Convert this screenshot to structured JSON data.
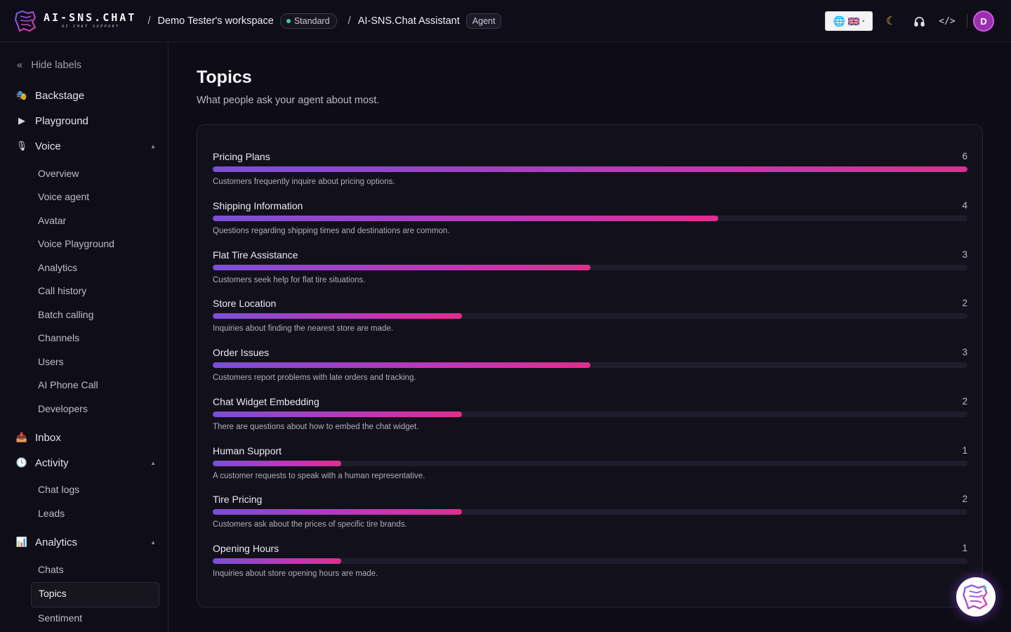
{
  "brand": {
    "name": "AI-SNS.CHAT",
    "tagline": "AI CHAT SUPPORT"
  },
  "header": {
    "sep": "/",
    "workspace": "Demo Tester's workspace",
    "plan_badge": "Standard",
    "agent_name": "AI-SNS.Chat Assistant",
    "agent_badge": "Agent",
    "code_label": "</>",
    "avatar_letter": "D"
  },
  "sidebar": {
    "hide_labels": "Hide labels",
    "backstage": "Backstage",
    "playground": "Playground",
    "voice": "Voice",
    "voice_items": [
      "Overview",
      "Voice agent",
      "Avatar",
      "Voice Playground",
      "Analytics",
      "Call history",
      "Batch calling",
      "Channels",
      "Users",
      "AI Phone Call",
      "Developers"
    ],
    "inbox": "Inbox",
    "activity": "Activity",
    "activity_items": [
      "Chat logs",
      "Leads"
    ],
    "analytics": "Analytics",
    "analytics_items": [
      "Chats",
      "Topics",
      "Sentiment"
    ]
  },
  "page": {
    "title": "Topics",
    "subtitle": "What people ask your agent about most."
  },
  "topics": [
    {
      "name": "Pricing Plans",
      "count": "6",
      "share": 1.0,
      "desc": "Customers frequently inquire about pricing options."
    },
    {
      "name": "Shipping Information",
      "count": "4",
      "share": 0.67,
      "desc": "Questions regarding shipping times and destinations are common."
    },
    {
      "name": "Flat Tire Assistance",
      "count": "3",
      "share": 0.5,
      "desc": "Customers seek help for flat tire situations."
    },
    {
      "name": "Store Location",
      "count": "2",
      "share": 0.33,
      "desc": "Inquiries about finding the nearest store are made."
    },
    {
      "name": "Order Issues",
      "count": "3",
      "share": 0.5,
      "desc": "Customers report problems with late orders and tracking."
    },
    {
      "name": "Chat Widget Embedding",
      "count": "2",
      "share": 0.33,
      "desc": "There are questions about how to embed the chat widget."
    },
    {
      "name": "Human Support",
      "count": "1",
      "share": 0.17,
      "desc": "A customer requests to speak with a human representative."
    },
    {
      "name": "Tire Pricing",
      "count": "2",
      "share": 0.33,
      "desc": "Customers ask about the prices of specific tire brands."
    },
    {
      "name": "Opening Hours",
      "count": "1",
      "share": 0.17,
      "desc": "Inquiries about store opening hours are made."
    }
  ],
  "colors": {
    "bar_start": "#7a4fd6",
    "bar_end": "#e12d8d",
    "accent": "#9b2fb0"
  }
}
